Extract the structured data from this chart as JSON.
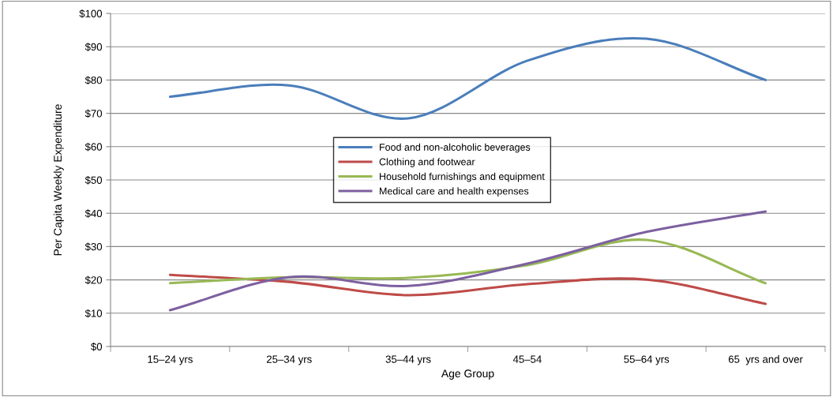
{
  "chart_data": {
    "type": "line",
    "xlabel": "Age Group",
    "ylabel": "Per Capita Weekly Expenditure",
    "categories": [
      "15–24 yrs",
      "25–34 yrs",
      "35–44 yrs",
      "45–54",
      "55–64 yrs",
      "65  yrs and over"
    ],
    "series": [
      {
        "name": "Food and non-alcoholic beverages",
        "color": "#4a7ebb",
        "values": [
          75,
          78.4,
          68.5,
          85.8,
          92.4,
          80
        ]
      },
      {
        "name": "Clothing and footwear",
        "color": "#be4b48",
        "values": [
          21.5,
          19.4,
          15.4,
          18.7,
          20.1,
          12.8
        ]
      },
      {
        "name": "Household furnishings and equipment",
        "color": "#98b954",
        "values": [
          19,
          20.8,
          20.6,
          24.4,
          32,
          19
        ]
      },
      {
        "name": "Medical care and health expenses",
        "color": "#7d60a0",
        "values": [
          10.9,
          20.8,
          18.2,
          24.9,
          34.4,
          40.5
        ]
      }
    ],
    "ylim": [
      0,
      100
    ],
    "yticks": [
      {
        "value": 0,
        "label": "$0"
      },
      {
        "value": 10,
        "label": "$10"
      },
      {
        "value": 20,
        "label": "$20"
      },
      {
        "value": 30,
        "label": "$30"
      },
      {
        "value": 40,
        "label": "$40"
      },
      {
        "value": 50,
        "label": "$50"
      },
      {
        "value": 60,
        "label": "$60"
      },
      {
        "value": 70,
        "label": "$70"
      },
      {
        "value": 80,
        "label": "$80"
      },
      {
        "value": 90,
        "label": "$90"
      },
      {
        "value": 100,
        "label": "$100"
      }
    ],
    "grid": "y",
    "legend": "center",
    "marker": "none",
    "line_style": "solid"
  }
}
